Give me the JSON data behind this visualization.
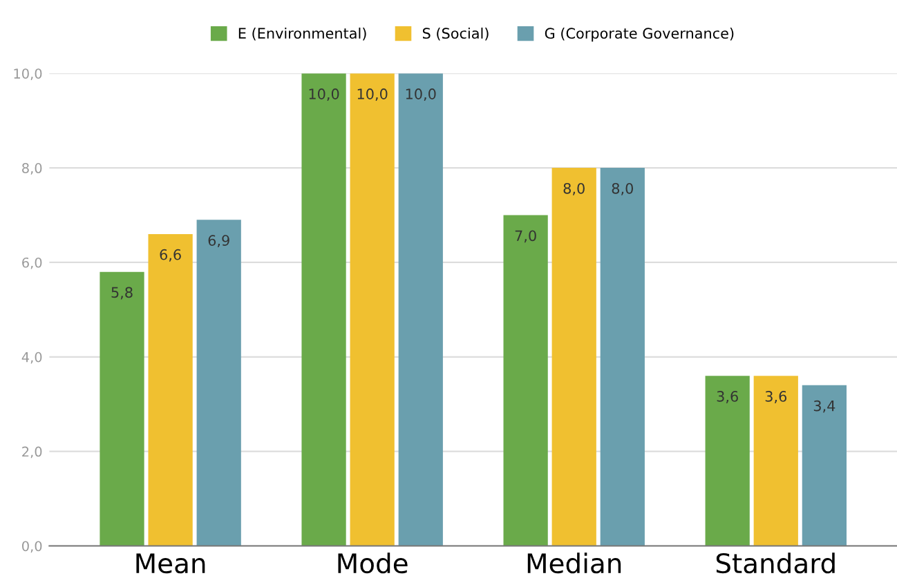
{
  "chart_data": {
    "type": "bar",
    "categories": [
      "Mean",
      "Mode",
      "Median",
      "Standard"
    ],
    "series": [
      {
        "name": "E (Environmental)",
        "color": "#6aaa4a",
        "values": [
          5.8,
          10.0,
          7.0,
          3.6
        ],
        "value_labels": [
          "5,8",
          "10,0",
          "7,0",
          "3,6"
        ]
      },
      {
        "name": "S (Social)",
        "color": "#f0c030",
        "values": [
          6.6,
          10.0,
          8.0,
          3.6
        ],
        "value_labels": [
          "6,6",
          "10,0",
          "8,0",
          "3,6"
        ]
      },
      {
        "name": "G (Corporate Governance)",
        "color": "#6a9fae",
        "values": [
          6.9,
          10.0,
          8.0,
          3.4
        ],
        "value_labels": [
          "6,9",
          "10,0",
          "8,0",
          "3,4"
        ]
      }
    ],
    "ylim": [
      0,
      10
    ],
    "yticks": [
      {
        "value": 0,
        "label": "0,0"
      },
      {
        "value": 2,
        "label": "2,0"
      },
      {
        "value": 4,
        "label": "4,0"
      },
      {
        "value": 6,
        "label": "6,0"
      },
      {
        "value": 8,
        "label": "8,0"
      },
      {
        "value": 10,
        "label": "10,0"
      }
    ],
    "grid": "y",
    "legend": "top"
  }
}
